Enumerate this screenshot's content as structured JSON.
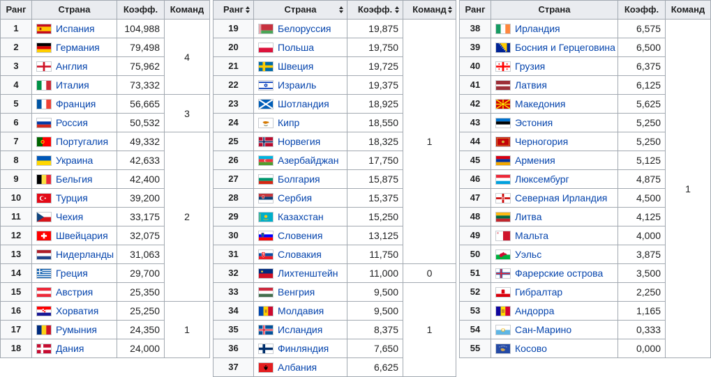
{
  "headers": {
    "rank": "Ранг",
    "country": "Страна",
    "coef": "Коэфф.",
    "teams": "Команд"
  },
  "tables": [
    {
      "rows": [
        {
          "rank": "1",
          "country": "Испания",
          "coef": "104,988",
          "flag": "es"
        },
        {
          "rank": "2",
          "country": "Германия",
          "coef": "79,498",
          "flag": "de"
        },
        {
          "rank": "3",
          "country": "Англия",
          "coef": "75,962",
          "flag": "en"
        },
        {
          "rank": "4",
          "country": "Италия",
          "coef": "73,332",
          "flag": "it"
        },
        {
          "rank": "5",
          "country": "Франция",
          "coef": "56,665",
          "flag": "fr"
        },
        {
          "rank": "6",
          "country": "Россия",
          "coef": "50,532",
          "flag": "ru"
        },
        {
          "rank": "7",
          "country": "Португалия",
          "coef": "49,332",
          "flag": "pt"
        },
        {
          "rank": "8",
          "country": "Украина",
          "coef": "42,633",
          "flag": "ua"
        },
        {
          "rank": "9",
          "country": "Бельгия",
          "coef": "42,400",
          "flag": "be"
        },
        {
          "rank": "10",
          "country": "Турция",
          "coef": "39,200",
          "flag": "tr"
        },
        {
          "rank": "11",
          "country": "Чехия",
          "coef": "33,175",
          "flag": "cz"
        },
        {
          "rank": "12",
          "country": "Швейцария",
          "coef": "32,075",
          "flag": "ch"
        },
        {
          "rank": "13",
          "country": "Нидерланды",
          "coef": "31,063",
          "flag": "nl"
        },
        {
          "rank": "14",
          "country": "Греция",
          "coef": "29,700",
          "flag": "gr"
        },
        {
          "rank": "15",
          "country": "Австрия",
          "coef": "25,350",
          "flag": "at"
        },
        {
          "rank": "16",
          "country": "Хорватия",
          "coef": "25,250",
          "flag": "hr"
        },
        {
          "rank": "17",
          "country": "Румыния",
          "coef": "24,350",
          "flag": "ro"
        },
        {
          "rank": "18",
          "country": "Дания",
          "coef": "24,000",
          "flag": "dk"
        }
      ],
      "groups": [
        {
          "start": 0,
          "span": 4,
          "teams": "4"
        },
        {
          "start": 4,
          "span": 2,
          "teams": "3"
        },
        {
          "start": 6,
          "span": 9,
          "teams": "2"
        },
        {
          "start": 15,
          "span": 3,
          "teams": "1"
        }
      ]
    },
    {
      "rows": [
        {
          "rank": "19",
          "country": "Белоруссия",
          "coef": "19,875",
          "flag": "by"
        },
        {
          "rank": "20",
          "country": "Польша",
          "coef": "19,750",
          "flag": "pl"
        },
        {
          "rank": "21",
          "country": "Швеция",
          "coef": "19,725",
          "flag": "se"
        },
        {
          "rank": "22",
          "country": "Израиль",
          "coef": "19,375",
          "flag": "il"
        },
        {
          "rank": "23",
          "country": "Шотландия",
          "coef": "18,925",
          "flag": "sc"
        },
        {
          "rank": "24",
          "country": "Кипр",
          "coef": "18,550",
          "flag": "cy"
        },
        {
          "rank": "25",
          "country": "Норвегия",
          "coef": "18,325",
          "flag": "no"
        },
        {
          "rank": "26",
          "country": "Азербайджан",
          "coef": "17,750",
          "flag": "az"
        },
        {
          "rank": "27",
          "country": "Болгария",
          "coef": "15,875",
          "flag": "bg"
        },
        {
          "rank": "28",
          "country": "Сербия",
          "coef": "15,375",
          "flag": "rs"
        },
        {
          "rank": "29",
          "country": "Казахстан",
          "coef": "15,250",
          "flag": "kz"
        },
        {
          "rank": "30",
          "country": "Словения",
          "coef": "13,125",
          "flag": "si"
        },
        {
          "rank": "31",
          "country": "Словакия",
          "coef": "11,750",
          "flag": "sk"
        },
        {
          "rank": "32",
          "country": "Лихтенштейн",
          "coef": "11,000",
          "flag": "li"
        },
        {
          "rank": "33",
          "country": "Венгрия",
          "coef": "9,500",
          "flag": "hu"
        },
        {
          "rank": "34",
          "country": "Молдавия",
          "coef": "9,500",
          "flag": "md"
        },
        {
          "rank": "35",
          "country": "Исландия",
          "coef": "8,375",
          "flag": "is"
        },
        {
          "rank": "36",
          "country": "Финляндия",
          "coef": "7,650",
          "flag": "fi"
        },
        {
          "rank": "37",
          "country": "Албания",
          "coef": "6,625",
          "flag": "al"
        }
      ],
      "groups": [
        {
          "start": 0,
          "span": 13,
          "teams": "1"
        },
        {
          "start": 13,
          "span": 1,
          "teams": "0"
        },
        {
          "start": 14,
          "span": 5,
          "teams": "1"
        }
      ]
    },
    {
      "rows": [
        {
          "rank": "38",
          "country": "Ирландия",
          "coef": "6,575",
          "flag": "ie"
        },
        {
          "rank": "39",
          "country": "Босния и Герцеговина",
          "coef": "6,500",
          "flag": "ba"
        },
        {
          "rank": "40",
          "country": "Грузия",
          "coef": "6,375",
          "flag": "ge"
        },
        {
          "rank": "41",
          "country": "Латвия",
          "coef": "6,125",
          "flag": "lv"
        },
        {
          "rank": "42",
          "country": "Македония",
          "coef": "5,625",
          "flag": "mk"
        },
        {
          "rank": "43",
          "country": "Эстония",
          "coef": "5,250",
          "flag": "ee"
        },
        {
          "rank": "44",
          "country": "Черногория",
          "coef": "5,250",
          "flag": "me"
        },
        {
          "rank": "45",
          "country": "Армения",
          "coef": "5,125",
          "flag": "am"
        },
        {
          "rank": "46",
          "country": "Люксембург",
          "coef": "4,875",
          "flag": "lu"
        },
        {
          "rank": "47",
          "country": "Северная Ирландия",
          "coef": "4,500",
          "flag": "ni"
        },
        {
          "rank": "48",
          "country": "Литва",
          "coef": "4,125",
          "flag": "lt"
        },
        {
          "rank": "49",
          "country": "Мальта",
          "coef": "4,000",
          "flag": "mt"
        },
        {
          "rank": "50",
          "country": "Уэльс",
          "coef": "3,875",
          "flag": "wl"
        },
        {
          "rank": "51",
          "country": "Фарерские острова",
          "coef": "3,500",
          "flag": "fo"
        },
        {
          "rank": "52",
          "country": "Гибралтар",
          "coef": "2,250",
          "flag": "gi"
        },
        {
          "rank": "53",
          "country": "Андорра",
          "coef": "1,165",
          "flag": "ad"
        },
        {
          "rank": "54",
          "country": "Сан-Марино",
          "coef": "0,333",
          "flag": "sm"
        },
        {
          "rank": "55",
          "country": "Косово",
          "coef": "0,000",
          "flag": "xk"
        }
      ],
      "groups": [
        {
          "start": 0,
          "span": 18,
          "teams": "1"
        }
      ]
    }
  ]
}
